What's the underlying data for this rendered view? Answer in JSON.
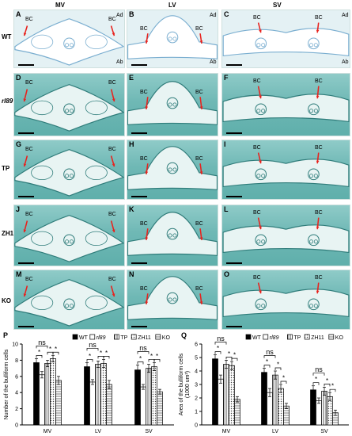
{
  "columns": [
    "MV",
    "LV",
    "SV"
  ],
  "rows": [
    {
      "label": "WT",
      "italic": false,
      "letters": [
        "A",
        "B",
        "C"
      ]
    },
    {
      "label": "rl89",
      "italic": true,
      "letters": [
        "D",
        "E",
        "F"
      ]
    },
    {
      "label": "TP",
      "italic": false,
      "letters": [
        "G",
        "H",
        "I"
      ]
    },
    {
      "label": "ZH11",
      "italic": false,
      "letters": [
        "J",
        "K",
        "L"
      ]
    },
    {
      "label": "KO",
      "italic": false,
      "letters": [
        "M",
        "N",
        "O"
      ]
    }
  ],
  "bc_label": "BC",
  "corner_ad": "Ad",
  "corner_ab": "Ab",
  "colors": {
    "arrow": "#e8231e",
    "stain": "#6fb8b5",
    "wt_bg": "#e4f1f4"
  },
  "chart_data": [
    {
      "panel": "P",
      "type": "bar",
      "ylabel": "Number of the bulliform cells",
      "ylim": [
        0,
        10
      ],
      "yticks": [
        0,
        2,
        4,
        6,
        8,
        10
      ],
      "categories": [
        "MV",
        "LV",
        "SV"
      ],
      "series": [
        {
          "name": "WT",
          "pattern": "solid",
          "values": [
            7.7,
            7.2,
            6.8
          ],
          "errors": [
            0.5,
            0.5,
            0.6
          ]
        },
        {
          "name": "rl89",
          "pattern": "open",
          "values": [
            6.2,
            5.3,
            4.7
          ],
          "errors": [
            0.4,
            0.3,
            0.3
          ]
        },
        {
          "name": "TP",
          "pattern": "vertical",
          "values": [
            7.6,
            7.5,
            7.0
          ],
          "errors": [
            0.4,
            0.4,
            0.5
          ]
        },
        {
          "name": "ZH11",
          "pattern": "dots",
          "values": [
            8.2,
            7.6,
            7.2
          ],
          "errors": [
            0.4,
            0.5,
            0.5
          ]
        },
        {
          "name": "KO",
          "pattern": "horizontal",
          "values": [
            5.5,
            5.0,
            4.1
          ],
          "errors": [
            0.5,
            0.5,
            0.3
          ]
        }
      ],
      "annotations": [
        {
          "pair": [
            0,
            1
          ],
          "category": 0,
          "text": "*"
        },
        {
          "pair": [
            2,
            3
          ],
          "category": 0,
          "text": "*"
        },
        {
          "pair": [
            3,
            4
          ],
          "category": 0,
          "text": "*"
        },
        {
          "pair": [
            0,
            2
          ],
          "category": 0,
          "text": "ns",
          "level": 2
        },
        {
          "pair": [
            0,
            1
          ],
          "category": 1,
          "text": "*"
        },
        {
          "pair": [
            2,
            3
          ],
          "category": 1,
          "text": "*"
        },
        {
          "pair": [
            3,
            4
          ],
          "category": 1,
          "text": "*"
        },
        {
          "pair": [
            0,
            2
          ],
          "category": 1,
          "text": "ns",
          "level": 2
        },
        {
          "pair": [
            0,
            1
          ],
          "category": 2,
          "text": "*"
        },
        {
          "pair": [
            2,
            3
          ],
          "category": 2,
          "text": "*"
        },
        {
          "pair": [
            3,
            4
          ],
          "category": 2,
          "text": "*"
        },
        {
          "pair": [
            0,
            2
          ],
          "category": 2,
          "text": "ns",
          "level": 2
        }
      ]
    },
    {
      "panel": "Q",
      "type": "bar",
      "ylabel": "Area of the bulliform cells",
      "ylabel2": "(1000 um²)",
      "ylim": [
        0,
        6
      ],
      "yticks": [
        0,
        1,
        2,
        3,
        4,
        5,
        6
      ],
      "categories": [
        "MV",
        "LV",
        "SV"
      ],
      "series": [
        {
          "name": "WT",
          "pattern": "solid",
          "values": [
            4.9,
            3.9,
            2.6
          ],
          "errors": [
            0.3,
            0.3,
            0.3
          ]
        },
        {
          "name": "rl89",
          "pattern": "open",
          "values": [
            3.4,
            2.4,
            1.8
          ],
          "errors": [
            0.3,
            0.3,
            0.2
          ]
        },
        {
          "name": "TP",
          "pattern": "vertical",
          "values": [
            4.5,
            3.7,
            2.5
          ],
          "errors": [
            0.3,
            0.3,
            0.3
          ]
        },
        {
          "name": "ZH11",
          "pattern": "dots",
          "values": [
            4.4,
            2.7,
            2.1
          ],
          "errors": [
            0.3,
            0.3,
            0.3
          ]
        },
        {
          "name": "KO",
          "pattern": "horizontal",
          "values": [
            1.9,
            1.4,
            0.9
          ],
          "errors": [
            0.2,
            0.2,
            0.2
          ]
        }
      ],
      "annotations": [
        {
          "pair": [
            0,
            1
          ],
          "category": 0,
          "text": "*"
        },
        {
          "pair": [
            2,
            3
          ],
          "category": 0,
          "text": "*"
        },
        {
          "pair": [
            3,
            4
          ],
          "category": 0,
          "text": "*"
        },
        {
          "pair": [
            0,
            2
          ],
          "category": 0,
          "text": "ns",
          "level": 2
        },
        {
          "pair": [
            0,
            1
          ],
          "category": 1,
          "text": "*"
        },
        {
          "pair": [
            2,
            3
          ],
          "category": 1,
          "text": "*"
        },
        {
          "pair": [
            3,
            4
          ],
          "category": 1,
          "text": "*"
        },
        {
          "pair": [
            0,
            2
          ],
          "category": 1,
          "text": "ns",
          "level": 2
        },
        {
          "pair": [
            0,
            1
          ],
          "category": 2,
          "text": "*"
        },
        {
          "pair": [
            2,
            3
          ],
          "category": 2,
          "text": "*"
        },
        {
          "pair": [
            3,
            4
          ],
          "category": 2,
          "text": "*"
        },
        {
          "pair": [
            0,
            2
          ],
          "category": 2,
          "text": "ns",
          "level": 2
        }
      ]
    }
  ]
}
